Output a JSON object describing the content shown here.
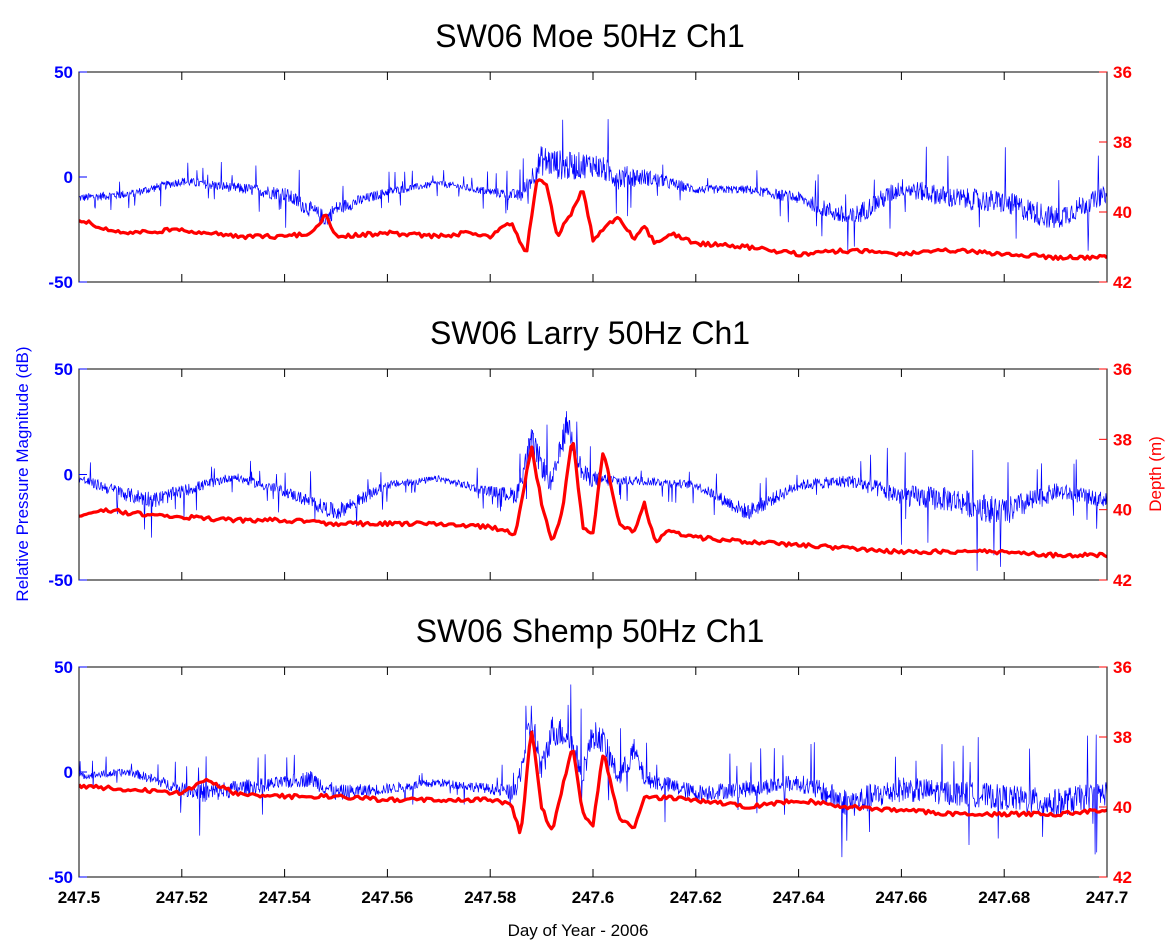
{
  "chart_data": {
    "type": "line",
    "xlabel": "Day of Year - 2006",
    "ylabel_left": "Relative Pressure Magnitude (dB)",
    "ylabel_right": "Depth (m)",
    "xlim": [
      247.5,
      247.7
    ],
    "x_ticks": [
      "247.5",
      "247.52",
      "247.54",
      "247.56",
      "247.58",
      "247.6",
      "247.62",
      "247.64",
      "247.66",
      "247.68",
      "247.7"
    ],
    "ylim_left": [
      -50,
      50
    ],
    "y_ticks_left": [
      "50",
      "0",
      "-50"
    ],
    "ylim_right": [
      36,
      42
    ],
    "y_ticks_right": [
      "36",
      "38",
      "40",
      "42"
    ],
    "right_axis_reversed": true,
    "colors": {
      "pressure": "#0000ff",
      "depth": "#ff0000"
    },
    "panels": [
      {
        "title": "SW06 Moe 50Hz Ch1",
        "series": [
          {
            "axis": "left",
            "color": "#0000ff",
            "x": [
              247.5,
              247.51,
              247.52,
              247.53,
              247.54,
              247.548,
              247.55,
              247.56,
              247.57,
              247.58,
              247.586,
              247.59,
              247.595,
              247.6,
              247.605,
              247.61,
              247.62,
              247.63,
              247.64,
              247.65,
              247.66,
              247.67,
              247.68,
              247.69,
              247.7
            ],
            "y": [
              -10,
              -8,
              -2,
              -5,
              -8,
              -20,
              -15,
              -7,
              -3,
              -7,
              -9,
              8,
              5,
              6,
              0,
              0,
              -6,
              -6,
              -10,
              -20,
              -5,
              -10,
              -12,
              -20,
              -8
            ],
            "spread": [
              4,
              4,
              4,
              5,
              7,
              8,
              7,
              4,
              3,
              4,
              6,
              15,
              14,
              12,
              12,
              8,
              4,
              4,
              6,
              10,
              9,
              10,
              11,
              12,
              8
            ]
          },
          {
            "axis": "right",
            "color": "#ff0000",
            "x": [
              247.5,
              247.505,
              247.51,
              247.52,
              247.53,
              247.54,
              247.545,
              247.548,
              247.55,
              247.56,
              247.57,
              247.575,
              247.58,
              247.584,
              247.587,
              247.589,
              247.591,
              247.593,
              247.596,
              247.598,
              247.6,
              247.602,
              247.605,
              247.608,
              247.61,
              247.612,
              247.615,
              247.62,
              247.63,
              247.64,
              247.65,
              247.66,
              247.67,
              247.68,
              247.69,
              247.7
            ],
            "y": [
              40.2,
              40.5,
              40.6,
              40.5,
              40.7,
              40.7,
              40.6,
              40.1,
              40.7,
              40.6,
              40.7,
              40.6,
              40.7,
              40.3,
              41.2,
              39.1,
              39.2,
              40.7,
              40.0,
              39.3,
              40.8,
              40.5,
              40.1,
              40.8,
              40.4,
              40.9,
              40.6,
              40.9,
              41.0,
              41.2,
              41.1,
              41.2,
              41.1,
              41.2,
              41.3,
              41.3
            ]
          }
        ]
      },
      {
        "title": "SW06 Larry 50Hz Ch1",
        "series": [
          {
            "axis": "left",
            "color": "#0000ff",
            "x": [
              247.5,
              247.51,
              247.515,
              247.52,
              247.53,
              247.54,
              247.55,
              247.56,
              247.57,
              247.58,
              247.585,
              247.588,
              247.59,
              247.592,
              247.595,
              247.598,
              247.6,
              247.605,
              247.61,
              247.62,
              247.63,
              247.64,
              247.65,
              247.66,
              247.67,
              247.68,
              247.69,
              247.7
            ],
            "y": [
              -2,
              -10,
              -12,
              -8,
              -1,
              -8,
              -18,
              -5,
              -2,
              -8,
              -10,
              15,
              5,
              -5,
              25,
              0,
              -2,
              -3,
              -3,
              -5,
              -18,
              -5,
              -3,
              -10,
              -12,
              -18,
              -8,
              -12
            ],
            "spread": [
              4,
              7,
              8,
              6,
              4,
              5,
              8,
              4,
              3,
              5,
              8,
              15,
              12,
              10,
              14,
              10,
              8,
              5,
              4,
              4,
              8,
              5,
              6,
              10,
              12,
              14,
              8,
              7
            ]
          },
          {
            "axis": "right",
            "color": "#ff0000",
            "x": [
              247.5,
              247.505,
              247.51,
              247.52,
              247.53,
              247.54,
              247.55,
              247.56,
              247.57,
              247.58,
              247.585,
              247.588,
              247.59,
              247.592,
              247.594,
              247.596,
              247.598,
              247.6,
              247.602,
              247.605,
              247.608,
              247.61,
              247.612,
              247.615,
              247.62,
              247.63,
              247.64,
              247.65,
              247.66,
              247.67,
              247.68,
              247.69,
              247.7
            ],
            "y": [
              40.2,
              40.0,
              40.1,
              40.2,
              40.3,
              40.3,
              40.4,
              40.4,
              40.4,
              40.5,
              40.7,
              38.2,
              39.8,
              40.9,
              40.1,
              37.9,
              40.5,
              40.7,
              38.3,
              40.4,
              40.6,
              39.8,
              40.9,
              40.6,
              40.8,
              40.9,
              41.0,
              41.1,
              41.2,
              41.2,
              41.2,
              41.3,
              41.3
            ]
          }
        ]
      },
      {
        "title": "SW06 Shemp 50Hz Ch1",
        "series": [
          {
            "axis": "left",
            "color": "#0000ff",
            "x": [
              247.5,
              247.51,
              247.52,
              247.525,
              247.53,
              247.54,
              247.545,
              247.55,
              247.56,
              247.57,
              247.58,
              247.585,
              247.588,
              247.59,
              247.592,
              247.595,
              247.598,
              247.6,
              247.602,
              247.605,
              247.608,
              247.61,
              247.62,
              247.63,
              247.64,
              247.65,
              247.66,
              247.67,
              247.68,
              247.69,
              247.7
            ],
            "y": [
              -2,
              0,
              -8,
              -10,
              -8,
              -5,
              -3,
              -10,
              -8,
              -5,
              -8,
              -10,
              25,
              0,
              20,
              18,
              0,
              18,
              15,
              -3,
              10,
              -3,
              -10,
              -8,
              -5,
              -15,
              -8,
              -10,
              -12,
              -15,
              -10
            ],
            "spread": [
              3,
              4,
              6,
              10,
              8,
              6,
              8,
              8,
              5,
              4,
              5,
              8,
              18,
              15,
              15,
              14,
              12,
              14,
              12,
              10,
              12,
              8,
              8,
              8,
              8,
              14,
              12,
              12,
              12,
              14,
              12
            ]
          },
          {
            "axis": "right",
            "color": "#ff0000",
            "x": [
              247.5,
              247.51,
              247.52,
              247.525,
              247.53,
              247.54,
              247.55,
              247.56,
              247.57,
              247.58,
              247.584,
              247.586,
              247.588,
              247.59,
              247.592,
              247.594,
              247.596,
              247.598,
              247.6,
              247.602,
              247.605,
              247.608,
              247.61,
              247.62,
              247.63,
              247.64,
              247.65,
              247.66,
              247.67,
              247.68,
              247.69,
              247.7
            ],
            "y": [
              39.4,
              39.5,
              39.6,
              39.2,
              39.6,
              39.7,
              39.7,
              39.8,
              39.8,
              39.8,
              39.9,
              40.8,
              37.7,
              40.0,
              40.7,
              39.5,
              38.2,
              40.2,
              40.5,
              38.4,
              40.3,
              40.6,
              39.7,
              39.8,
              40.0,
              39.8,
              40.0,
              40.1,
              40.2,
              40.2,
              40.2,
              40.1
            ]
          }
        ]
      }
    ]
  }
}
